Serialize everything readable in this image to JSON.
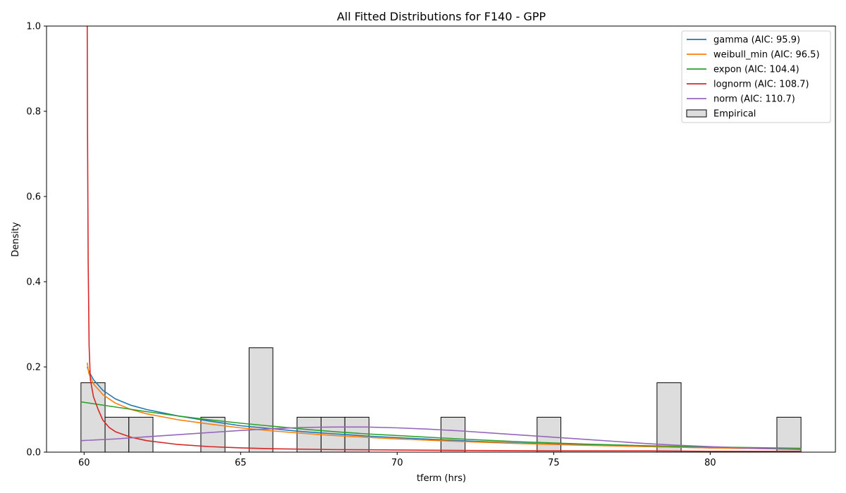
{
  "chart_data": {
    "type": "bar",
    "title": "All Fitted Distributions for F140 - GPP",
    "xlabel": "tferm (hrs)",
    "ylabel": "Density",
    "xlim": [
      58.8,
      84.0
    ],
    "ylim": [
      0.0,
      1.0
    ],
    "xticks": [
      60,
      65,
      70,
      75,
      80
    ],
    "yticks": [
      0.0,
      0.2,
      0.4,
      0.6,
      0.8,
      1.0
    ],
    "xtick_labels": [
      "60",
      "65",
      "70",
      "75",
      "80"
    ],
    "ytick_labels": [
      "0.0",
      "0.2",
      "0.4",
      "0.6",
      "0.8",
      "1.0"
    ],
    "grid": false,
    "legend_position": "top-right",
    "histogram": {
      "name": "Empirical",
      "fill": "#dddddd",
      "edge": "#000000",
      "bins": [
        {
          "x0": 59.9,
          "x1": 60.67,
          "density": 0.163
        },
        {
          "x0": 60.67,
          "x1": 61.43,
          "density": 0.082
        },
        {
          "x0": 61.43,
          "x1": 62.2,
          "density": 0.082
        },
        {
          "x0": 63.73,
          "x1": 64.5,
          "density": 0.082
        },
        {
          "x0": 65.27,
          "x1": 66.03,
          "density": 0.245
        },
        {
          "x0": 66.8,
          "x1": 67.57,
          "density": 0.082
        },
        {
          "x0": 67.57,
          "x1": 68.33,
          "density": 0.082
        },
        {
          "x0": 68.33,
          "x1": 69.1,
          "density": 0.082
        },
        {
          "x0": 71.4,
          "x1": 72.17,
          "density": 0.082
        },
        {
          "x0": 74.47,
          "x1": 75.23,
          "density": 0.082
        },
        {
          "x0": 78.3,
          "x1": 79.07,
          "density": 0.163
        },
        {
          "x0": 82.13,
          "x1": 82.9,
          "density": 0.082
        }
      ]
    },
    "series": [
      {
        "name": "gamma (AIC: 95.9)",
        "color": "#1f77b4",
        "x": [
          60.1,
          60.15,
          60.3,
          60.6,
          61.0,
          61.5,
          62.0,
          63.0,
          64.0,
          65.0,
          66.0,
          67.0,
          68.0,
          69.0,
          70.0,
          72.0,
          74.0,
          76.0,
          78.0,
          80.0,
          82.9
        ],
        "y": [
          0.2,
          0.19,
          0.17,
          0.145,
          0.125,
          0.11,
          0.1,
          0.085,
          0.073,
          0.062,
          0.055,
          0.048,
          0.043,
          0.038,
          0.034,
          0.027,
          0.021,
          0.017,
          0.013,
          0.01,
          0.007
        ]
      },
      {
        "name": "weibull_min (AIC: 96.5)",
        "color": "#ff7f0e",
        "x": [
          60.1,
          60.15,
          60.3,
          60.6,
          61.0,
          61.5,
          62.0,
          63.0,
          64.0,
          65.0,
          66.0,
          67.0,
          68.0,
          69.0,
          70.0,
          72.0,
          74.0,
          76.0,
          78.0,
          80.0,
          82.9
        ],
        "y": [
          0.21,
          0.185,
          0.16,
          0.135,
          0.115,
          0.1,
          0.09,
          0.076,
          0.066,
          0.057,
          0.05,
          0.044,
          0.039,
          0.035,
          0.031,
          0.025,
          0.02,
          0.016,
          0.013,
          0.01,
          0.007
        ]
      },
      {
        "name": "expon (AIC: 104.4)",
        "color": "#2ca02c",
        "x": [
          59.9,
          61.0,
          62.0,
          63.0,
          64.0,
          65.0,
          66.0,
          67.0,
          68.0,
          69.0,
          70.0,
          72.0,
          74.0,
          76.0,
          78.0,
          80.0,
          82.9
        ],
        "y": [
          0.118,
          0.106,
          0.095,
          0.085,
          0.076,
          0.068,
          0.061,
          0.054,
          0.048,
          0.043,
          0.039,
          0.031,
          0.024,
          0.019,
          0.015,
          0.012,
          0.009
        ]
      },
      {
        "name": "lognorm (AIC: 108.7)",
        "color": "#d62728",
        "x": [
          60.1,
          60.11,
          60.13,
          60.16,
          60.2,
          60.3,
          60.45,
          60.6,
          60.8,
          61.0,
          61.5,
          62.0,
          63.0,
          64.0,
          65.0,
          66.0,
          68.0,
          70.0,
          72.0,
          75.0,
          78.0,
          80.0,
          82.9
        ],
        "y": [
          1.0,
          0.75,
          0.45,
          0.25,
          0.17,
          0.13,
          0.1,
          0.075,
          0.058,
          0.048,
          0.035,
          0.027,
          0.018,
          0.013,
          0.01,
          0.008,
          0.006,
          0.005,
          0.004,
          0.003,
          0.003,
          0.002,
          0.002
        ]
      },
      {
        "name": "norm (AIC: 110.7)",
        "color": "#9467bd",
        "x": [
          59.9,
          61.0,
          62.0,
          63.0,
          64.0,
          65.0,
          66.0,
          67.0,
          68.0,
          69.0,
          70.0,
          71.0,
          72.0,
          73.0,
          74.0,
          75.0,
          76.0,
          77.0,
          78.0,
          79.0,
          80.0,
          81.0,
          82.0,
          82.9
        ],
        "y": [
          0.027,
          0.031,
          0.036,
          0.041,
          0.046,
          0.051,
          0.055,
          0.058,
          0.059,
          0.059,
          0.057,
          0.054,
          0.05,
          0.045,
          0.04,
          0.035,
          0.03,
          0.025,
          0.02,
          0.016,
          0.013,
          0.01,
          0.008,
          0.006
        ]
      }
    ]
  }
}
